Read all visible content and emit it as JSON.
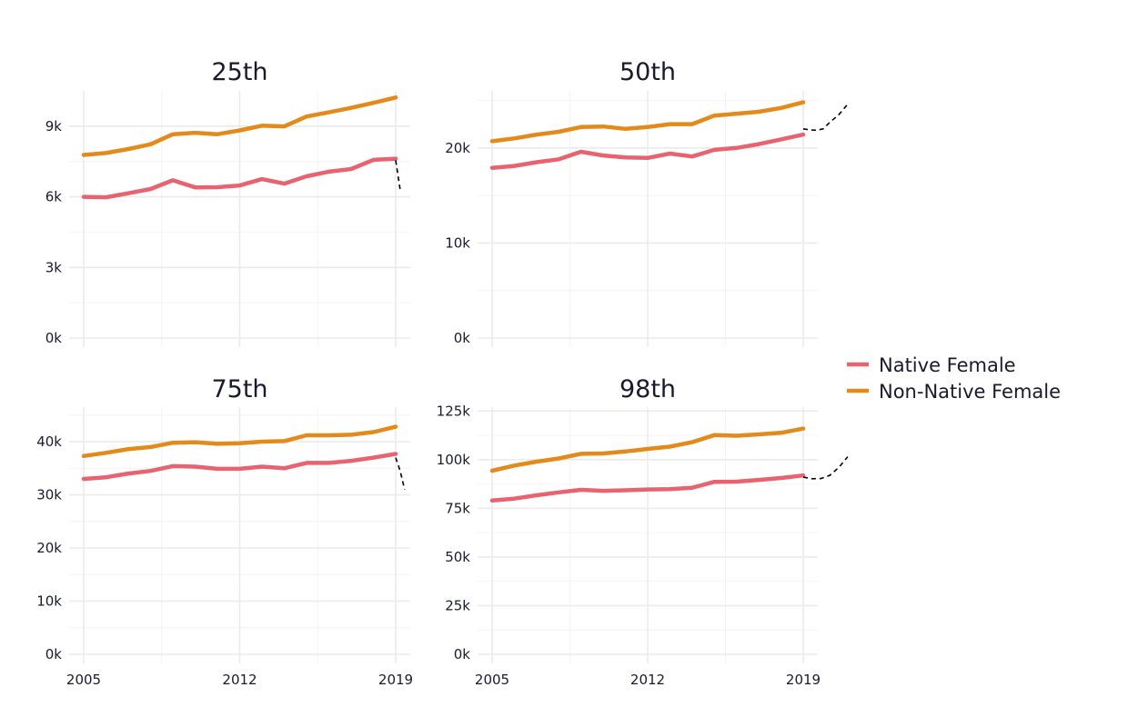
{
  "chart_data": {
    "type": "line",
    "layout": "facet-2x2",
    "x": [
      2005,
      2006,
      2007,
      2008,
      2009,
      2010,
      2011,
      2012,
      2013,
      2014,
      2015,
      2016,
      2017,
      2018,
      2019
    ],
    "x_ticks": [
      2005,
      2012,
      2019
    ],
    "x_tick_labels": [
      "2005",
      "2012",
      "2019"
    ],
    "grid": true,
    "legend_position": "right",
    "colors": {
      "Native Female": "#e8636f",
      "Non-Native Female": "#e48a1b"
    },
    "legend": [
      {
        "name": "Native Female",
        "color": "#e8636f"
      },
      {
        "name": "Non-Native Female",
        "color": "#e48a1b"
      }
    ],
    "panels": [
      {
        "title": "25th",
        "ylim": [
          0,
          10500
        ],
        "y_ticks": [
          0,
          3000,
          6000,
          9000
        ],
        "y_tick_labels": [
          "0k",
          "3k",
          "6k",
          "9k"
        ],
        "series": [
          {
            "name": "Native Female",
            "values": [
              6000,
              5980,
              6150,
              6330,
              6700,
              6400,
              6410,
              6480,
              6750,
              6560,
              6870,
              7070,
              7180,
              7570,
              7620
            ]
          },
          {
            "name": "Non-Native Female",
            "values": [
              7780,
              7860,
              8030,
              8230,
              8660,
              8720,
              8660,
              8820,
              9020,
              8990,
              9410,
              9590,
              9780,
              9990,
              10220
            ]
          }
        ],
        "dashed_segment": {
          "x": [
            2019,
            2019.2
          ],
          "y": [
            7550,
            6300
          ]
        }
      },
      {
        "title": "50th",
        "ylim": [
          0,
          26000
        ],
        "y_ticks": [
          0,
          10000,
          20000
        ],
        "y_tick_labels": [
          "0k",
          "10k",
          "20k"
        ],
        "series": [
          {
            "name": "Native Female",
            "values": [
              17900,
              18100,
              18500,
              18800,
              19600,
              19200,
              19000,
              18950,
              19400,
              19100,
              19800,
              20000,
              20400,
              20900,
              21400
            ]
          },
          {
            "name": "Non-Native Female",
            "values": [
              20700,
              21000,
              21400,
              21700,
              22200,
              22250,
              22000,
              22200,
              22500,
              22500,
              23400,
              23600,
              23800,
              24200,
              24800
            ]
          }
        ],
        "dashed_segment": {
          "x": [
            2019,
            2019.3,
            2019.6,
            2019.9,
            2020.2,
            2020.6,
            2021
          ],
          "y": [
            22000,
            21900,
            21850,
            22000,
            22700,
            23500,
            24600
          ]
        }
      },
      {
        "title": "75th",
        "ylim": [
          0,
          46500
        ],
        "y_ticks": [
          0,
          10000,
          20000,
          30000,
          40000
        ],
        "y_tick_labels": [
          "0k",
          "10k",
          "20k",
          "30k",
          "40k"
        ],
        "series": [
          {
            "name": "Native Female",
            "values": [
              33000,
              33300,
              34000,
              34500,
              35400,
              35300,
              34900,
              34900,
              35300,
              35000,
              36000,
              36000,
              36400,
              37000,
              37700
            ]
          },
          {
            "name": "Non-Native Female",
            "values": [
              37300,
              37900,
              38600,
              39000,
              39800,
              39900,
              39600,
              39700,
              40000,
              40100,
              41200,
              41200,
              41300,
              41800,
              42800
            ]
          }
        ],
        "dashed_segment": {
          "x": [
            2019,
            2019.2,
            2019.4
          ],
          "y": [
            37000,
            34500,
            31000
          ]
        }
      },
      {
        "title": "98th",
        "ylim": [
          0,
          127000
        ],
        "y_ticks": [
          0,
          25000,
          50000,
          75000,
          100000,
          125000
        ],
        "y_tick_labels": [
          "0k",
          "25k",
          "50k",
          "75k",
          "100k",
          "125k"
        ],
        "series": [
          {
            "name": "Native Female",
            "values": [
              79000,
              80000,
              81700,
              83200,
              84500,
              84000,
              84300,
              84700,
              84900,
              85600,
              88600,
              88700,
              89600,
              90600,
              91900
            ]
          },
          {
            "name": "Non-Native Female",
            "values": [
              94300,
              97000,
              99000,
              100600,
              103000,
              103200,
              104200,
              105500,
              106700,
              109000,
              112600,
              112300,
              113000,
              113800,
              116000
            ]
          }
        ],
        "dashed_segment": {
          "x": [
            2019,
            2019.4,
            2019.8,
            2020.2,
            2020.6,
            2021
          ],
          "y": [
            91000,
            90200,
            90300,
            92000,
            96000,
            101500
          ]
        }
      }
    ]
  }
}
